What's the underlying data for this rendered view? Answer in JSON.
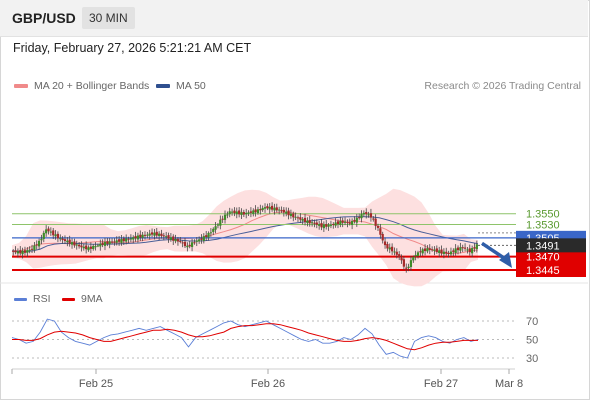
{
  "header": {
    "symbol": "GBP/USD",
    "timeframe": "30 MIN"
  },
  "timestamp": "Friday, February 27, 2026 5:21:21 AM CET",
  "legend": {
    "ma20": {
      "label": "MA 20 + Bollinger Bands",
      "color": "#f08a8a"
    },
    "ma50": {
      "label": "MA 50",
      "color": "#2f4f8f"
    },
    "copyright": "Research © 2026 Trading Central"
  },
  "rsi_legend": {
    "rsi": {
      "label": "RSI",
      "color": "#5b7fd6"
    },
    "ma9": {
      "label": "9MA",
      "color": "#e00000"
    }
  },
  "chart_data": {
    "type": "candlestick",
    "symbol": "GBP/USD",
    "timeframe": "30 MIN",
    "x_ticks": [
      "Feb 25",
      "Feb 26",
      "Feb 27",
      "Mar 8"
    ],
    "current_price": {
      "label": "1.3491",
      "value": 1.3491
    },
    "levels": [
      {
        "label": "1.3550",
        "value": 1.355,
        "style": "green"
      },
      {
        "label": "1.3530",
        "value": 1.353,
        "style": "green"
      },
      {
        "label": "1.3505",
        "value": 1.3505,
        "style": "blue"
      },
      {
        "label": "1.3470",
        "value": 1.347,
        "style": "red"
      },
      {
        "label": "1.3445",
        "value": 1.3445,
        "style": "red"
      }
    ],
    "forecast": {
      "from": 1.3491,
      "to": 1.3445,
      "direction": "down"
    },
    "price_path": [
      1.3481,
      1.3478,
      1.3479,
      1.3485,
      1.3497,
      1.3521,
      1.3512,
      1.3503,
      1.3498,
      1.3493,
      1.3488,
      1.3485,
      1.349,
      1.3494,
      1.3497,
      1.3499,
      1.3501,
      1.3504,
      1.3507,
      1.351,
      1.3513,
      1.3511,
      1.3507,
      1.3502,
      1.3498,
      1.3488,
      1.3498,
      1.3503,
      1.3512,
      1.3526,
      1.3542,
      1.3554,
      1.3552,
      1.355,
      1.3553,
      1.3556,
      1.3562,
      1.356,
      1.3557,
      1.3552,
      1.3545,
      1.354,
      1.3535,
      1.3532,
      1.3527,
      1.3528,
      1.3532,
      1.3535,
      1.3532,
      1.354,
      1.3552,
      1.3545,
      1.3522,
      1.349,
      1.3482,
      1.347,
      1.3445,
      1.347,
      1.348,
      1.3484,
      1.3482,
      1.3478,
      1.3476,
      1.3483,
      1.3487,
      1.348,
      1.3491
    ],
    "rsi": {
      "levels": [
        70,
        50,
        30
      ],
      "values": [
        52,
        50,
        46,
        48,
        58,
        72,
        70,
        58,
        52,
        48,
        46,
        44,
        48,
        52,
        55,
        56,
        58,
        60,
        62,
        60,
        62,
        64,
        60,
        56,
        52,
        42,
        52,
        56,
        60,
        64,
        68,
        70,
        66,
        64,
        66,
        68,
        70,
        66,
        62,
        58,
        54,
        50,
        48,
        50,
        46,
        46,
        48,
        52,
        50,
        55,
        62,
        56,
        44,
        34,
        36,
        32,
        30,
        48,
        52,
        54,
        52,
        48,
        46,
        50,
        52,
        48,
        50
      ],
      "ma9": [
        50,
        50,
        49,
        49,
        51,
        55,
        58,
        59,
        58,
        57,
        55,
        52,
        50,
        48,
        48,
        50,
        52,
        54,
        56,
        58,
        60,
        60,
        61,
        60,
        58,
        55,
        53,
        53,
        54,
        56,
        58,
        62,
        64,
        65,
        65,
        66,
        67,
        67,
        66,
        64,
        62,
        60,
        57,
        55,
        53,
        51,
        49,
        48,
        48,
        49,
        51,
        52,
        51,
        49,
        46,
        43,
        40,
        39,
        41,
        44,
        46,
        47,
        47,
        48,
        49,
        49,
        49
      ]
    }
  }
}
